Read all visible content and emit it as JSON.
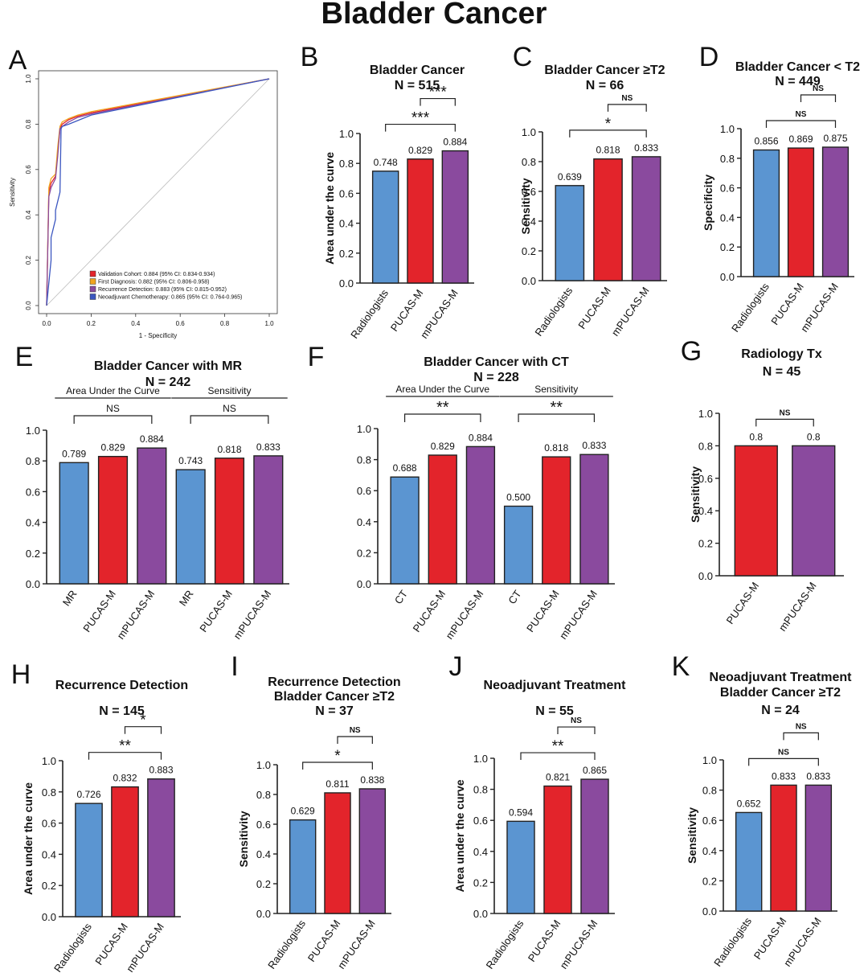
{
  "figure_title": "Bladder Cancer",
  "colors": {
    "blue": "#5b95d1",
    "red": "#e3242b",
    "purple": "#8a4a9e",
    "orange": "#f0a41e",
    "roc_blue": "#3b56c0"
  },
  "chart_data": [
    {
      "panel": "A",
      "type": "line",
      "xlabel": "1 - Specificity",
      "ylabel": "Sensitivity",
      "xlim": [
        0,
        1
      ],
      "ylim": [
        0,
        1
      ],
      "xticks": [
        "0.0",
        "0.2",
        "0.4",
        "0.6",
        "0.8",
        "1.0"
      ],
      "yticks": [
        "0.0",
        "0.2",
        "0.4",
        "0.6",
        "0.8",
        "1.0"
      ],
      "legend_position": "bottom-right",
      "series": [
        {
          "name": "Validation Cohort: 0.884 (95% CI: 0.834-0.934)",
          "color": "#e3242b",
          "x": [
            0,
            0.01,
            0.02,
            0.04,
            0.05,
            0.06,
            0.07,
            0.1,
            0.14,
            0.2,
            1.0
          ],
          "y": [
            0,
            0.5,
            0.54,
            0.57,
            0.68,
            0.78,
            0.8,
            0.82,
            0.835,
            0.85,
            1.0
          ]
        },
        {
          "name": "First Diagnosis: 0.882 (95% CI: 0.806-0.958)",
          "color": "#f0a41e",
          "x": [
            0,
            0.01,
            0.02,
            0.04,
            0.05,
            0.06,
            0.07,
            0.1,
            0.14,
            0.2,
            1.0
          ],
          "y": [
            0,
            0.52,
            0.56,
            0.58,
            0.7,
            0.79,
            0.81,
            0.825,
            0.84,
            0.855,
            1.0
          ]
        },
        {
          "name": "Recurrence Detection: 0.883 (95% CI: 0.815-0.952)",
          "color": "#8a4a9e",
          "x": [
            0,
            0.01,
            0.02,
            0.04,
            0.05,
            0.06,
            0.07,
            0.1,
            0.14,
            0.2,
            1.0
          ],
          "y": [
            0,
            0.48,
            0.52,
            0.56,
            0.66,
            0.78,
            0.79,
            0.81,
            0.83,
            0.845,
            1.0
          ]
        },
        {
          "name": "Neoadjuvant Chemotherapy: 0.865 (95% CI: 0.764-0.965)",
          "color": "#3b56c0",
          "x": [
            0,
            0.02,
            0.02,
            0.04,
            0.04,
            0.06,
            0.065,
            0.07,
            0.1,
            0.15,
            0.2,
            1.0
          ],
          "y": [
            0,
            0.2,
            0.3,
            0.38,
            0.42,
            0.5,
            0.78,
            0.79,
            0.8,
            0.82,
            0.84,
            1.0
          ]
        }
      ]
    },
    {
      "panel": "B",
      "type": "bar",
      "title": "Bladder Cancer",
      "subtitle": "N = 515",
      "ylabel": "Area under the curve",
      "ylim": [
        0,
        1
      ],
      "categories": [
        "Radiologists",
        "PUCAS-M",
        "mPUCAS-M"
      ],
      "values": [
        0.748,
        0.829,
        0.884
      ],
      "data_labels": [
        "0.748",
        "0.829",
        "0.884"
      ],
      "comparisons": [
        {
          "from": 0,
          "to": 2,
          "label": "***"
        },
        {
          "from": 1,
          "to": 2,
          "label": "***"
        }
      ]
    },
    {
      "panel": "C",
      "type": "bar",
      "title": "Bladder Cancer ≥T2",
      "subtitle": "N = 66",
      "ylabel": "Sensitivity",
      "ylim": [
        0,
        1
      ],
      "categories": [
        "Radiologists",
        "PUCAS-M",
        "mPUCAS-M"
      ],
      "values": [
        0.639,
        0.818,
        0.833
      ],
      "data_labels": [
        "0.639",
        "0.818",
        "0.833"
      ],
      "comparisons": [
        {
          "from": 0,
          "to": 2,
          "label": "*"
        },
        {
          "from": 1,
          "to": 2,
          "label": "NS"
        }
      ]
    },
    {
      "panel": "D",
      "type": "bar",
      "title": "Bladder Cancer < T2",
      "subtitle": "N = 449",
      "ylabel": "Specificity",
      "ylim": [
        0,
        1
      ],
      "categories": [
        "Radiologists",
        "PUCAS-M",
        "mPUCAS-M"
      ],
      "values": [
        0.856,
        0.869,
        0.875
      ],
      "data_labels": [
        "0.856",
        "0.869",
        "0.875"
      ],
      "comparisons": [
        {
          "from": 0,
          "to": 2,
          "label": "NS"
        },
        {
          "from": 1,
          "to": 2,
          "label": "NS"
        }
      ]
    },
    {
      "panel": "E",
      "type": "bar",
      "title": "Bladder Cancer with MR",
      "subtitle": "N = 242",
      "ylabel": "",
      "ylim": [
        0,
        1
      ],
      "groups": [
        {
          "label": "Area Under the Curve",
          "from": 0,
          "to": 2
        },
        {
          "label": "Sensitivity",
          "from": 3,
          "to": 5
        }
      ],
      "categories": [
        "MR",
        "PUCAS-M",
        "mPUCAS-M",
        "MR",
        "PUCAS-M",
        "mPUCAS-M"
      ],
      "values": [
        0.789,
        0.829,
        0.884,
        0.743,
        0.818,
        0.833
      ],
      "data_labels": [
        "0.789",
        "0.829",
        "0.884",
        "0.743",
        "0.818",
        "0.833"
      ],
      "comparisons": [
        {
          "from": 0,
          "to": 2,
          "label": "NS"
        },
        {
          "from": 3,
          "to": 5,
          "label": "NS"
        }
      ]
    },
    {
      "panel": "F",
      "type": "bar",
      "title": "Bladder Cancer with CT",
      "subtitle": "N = 228",
      "ylabel": "",
      "ylim": [
        0,
        1
      ],
      "groups": [
        {
          "label": "Area Under the Curve",
          "from": 0,
          "to": 2
        },
        {
          "label": "Sensitivity",
          "from": 3,
          "to": 5
        }
      ],
      "categories": [
        "CT",
        "PUCAS-M",
        "mPUCAS-M",
        "CT",
        "PUCAS-M",
        "mPUCAS-M"
      ],
      "values": [
        0.688,
        0.829,
        0.884,
        0.5,
        0.818,
        0.833
      ],
      "data_labels": [
        "0.688",
        "0.829",
        "0.884",
        "0.500",
        "0.818",
        "0.833"
      ],
      "comparisons": [
        {
          "from": 0,
          "to": 2,
          "label": "**"
        },
        {
          "from": 3,
          "to": 5,
          "label": "**"
        }
      ]
    },
    {
      "panel": "G",
      "type": "bar",
      "title": "Radiology Tx",
      "subtitle": "N = 45",
      "ylabel": "Sensitivity",
      "ylim": [
        0,
        1
      ],
      "categories": [
        "PUCAS-M",
        "mPUCAS-M"
      ],
      "values": [
        0.8,
        0.8
      ],
      "data_labels": [
        "0.8",
        "0.8"
      ],
      "comparisons": [
        {
          "from": 0,
          "to": 1,
          "label": "NS"
        }
      ]
    },
    {
      "panel": "H",
      "type": "bar",
      "title": "Recurrence Detection",
      "subtitle": "N = 145",
      "ylabel": "Area under the curve",
      "ylim": [
        0,
        1
      ],
      "categories": [
        "Radiologists",
        "PUCAS-M",
        "mPUCAS-M"
      ],
      "values": [
        0.726,
        0.832,
        0.883
      ],
      "data_labels": [
        "0.726",
        "0.832",
        "0.883"
      ],
      "comparisons": [
        {
          "from": 0,
          "to": 2,
          "label": "**"
        },
        {
          "from": 1,
          "to": 2,
          "label": "*"
        }
      ]
    },
    {
      "panel": "I",
      "type": "bar",
      "title": "Recurrence Detection",
      "title2": "Bladder Cancer ≥T2",
      "subtitle": "N = 37",
      "ylabel": "Sensitivity",
      "ylim": [
        0,
        1
      ],
      "categories": [
        "Radiologists",
        "PUCAS-M",
        "mPUCAS-M"
      ],
      "values": [
        0.629,
        0.811,
        0.838
      ],
      "data_labels": [
        "0.629",
        "0.811",
        "0.838"
      ],
      "comparisons": [
        {
          "from": 0,
          "to": 2,
          "label": "*"
        },
        {
          "from": 1,
          "to": 2,
          "label": "NS"
        }
      ]
    },
    {
      "panel": "J",
      "type": "bar",
      "title": "Neoadjuvant Treatment",
      "subtitle": "N = 55",
      "ylabel": "Area under the curve",
      "ylim": [
        0,
        1
      ],
      "categories": [
        "Radiologists",
        "PUCAS-M",
        "mPUCAS-M"
      ],
      "values": [
        0.594,
        0.821,
        0.865
      ],
      "data_labels": [
        "0.594",
        "0.821",
        "0.865"
      ],
      "comparisons": [
        {
          "from": 0,
          "to": 2,
          "label": "**"
        },
        {
          "from": 1,
          "to": 2,
          "label": "NS"
        }
      ]
    },
    {
      "panel": "K",
      "type": "bar",
      "title": "Neoadjuvant Treatment",
      "title2": "Bladder Cancer ≥T2",
      "subtitle": "N = 24",
      "ylabel": "Sensitivity",
      "ylim": [
        0,
        1
      ],
      "categories": [
        "Radiologists",
        "PUCAS-M",
        "mPUCAS-M"
      ],
      "values": [
        0.652,
        0.833,
        0.833
      ],
      "data_labels": [
        "0.652",
        "0.833",
        "0.833"
      ],
      "comparisons": [
        {
          "from": 0,
          "to": 2,
          "label": "NS"
        },
        {
          "from": 1,
          "to": 2,
          "label": "NS"
        }
      ]
    }
  ]
}
